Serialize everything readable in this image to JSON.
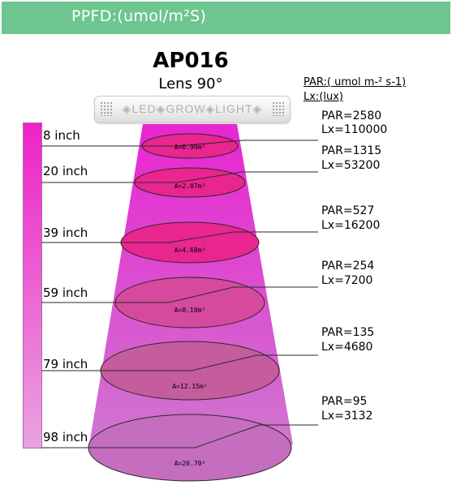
{
  "header": {
    "title": "PPFD:(umol/m²S)",
    "color": "#6dc690"
  },
  "model": "AP016",
  "lens": "Lens 90°",
  "legend": {
    "par": "PAR:( umol m-² s-1)",
    "lx": "Lx:(lux)"
  },
  "lamp": {
    "label": "◈LED◈GROW◈LIGHT◈"
  },
  "levels": [
    {
      "distance": "8 inch",
      "area": "A=0.99m²",
      "par": "PAR=2580",
      "lx": "Lx=110000"
    },
    {
      "distance": "20 inch",
      "area": "A=2.07m²",
      "par": "PAR=1315",
      "lx": "Lx=53200"
    },
    {
      "distance": "39 inch",
      "area": "A=4.68m²",
      "par": "PAR=527",
      "lx": "Lx=16200"
    },
    {
      "distance": "59 inch",
      "area": "A=8.10m²",
      "par": "PAR=254",
      "lx": "Lx=7200"
    },
    {
      "distance": "79 inch",
      "area": "A=12.15m²",
      "par": "PAR=135",
      "lx": "Lx=4680"
    },
    {
      "distance": "98 inch",
      "area": "A=20.70²",
      "par": "PAR=95",
      "lx": "Lx=3132"
    }
  ]
}
